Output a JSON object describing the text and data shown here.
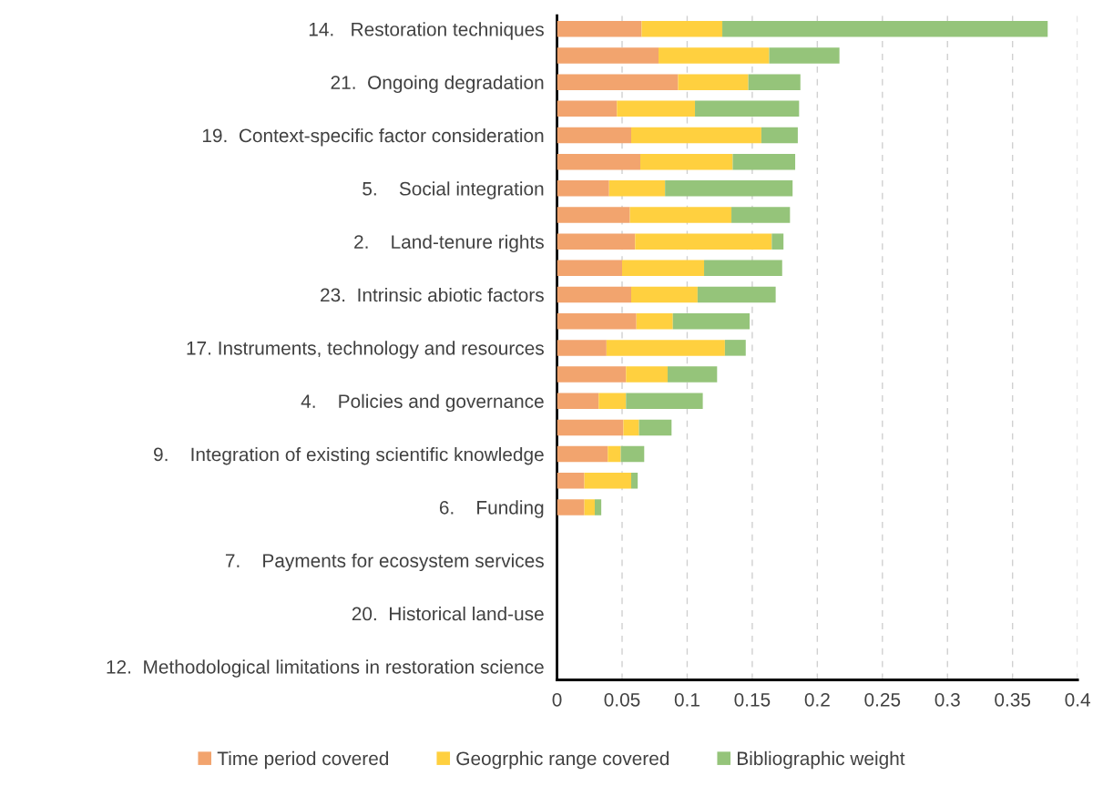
{
  "chart_data": {
    "type": "bar",
    "orientation": "horizontal",
    "stacked": true,
    "categories": [
      "14.   Restoration techniques",
      null,
      "21.  Ongoing degradation",
      null,
      "19.  Context-specific factor consideration",
      null,
      "5.    Social integration",
      null,
      "2.    Land-tenure rights",
      null,
      "23.  Intrinsic abiotic factors",
      null,
      "17. Instruments, technology and resources",
      null,
      "4.    Policies and governance",
      null,
      "9.    Integration of existing scientific knowledge",
      null,
      "6.    Funding",
      null,
      "7.    Payments for ecosystem services",
      null,
      "20.  Historical land-use",
      null,
      "12.  Methodological limitations in restoration science"
    ],
    "series": [
      {
        "name": "Time period covered",
        "color": "#f2a46e",
        "values": [
          0.065,
          0.078,
          0.093,
          0.046,
          0.057,
          0.064,
          0.04,
          0.056,
          0.06,
          0.05,
          0.057,
          0.061,
          0.038,
          0.053,
          0.032,
          0.051,
          0.039,
          0.021,
          0.021,
          0,
          0,
          0,
          0,
          0,
          0
        ]
      },
      {
        "name": "Geogrphic range covered",
        "color": "#ffd03f",
        "values": [
          0.062,
          0.085,
          0.054,
          0.06,
          0.1,
          0.071,
          0.043,
          0.078,
          0.105,
          0.063,
          0.051,
          0.028,
          0.091,
          0.032,
          0.021,
          0.012,
          0.01,
          0.036,
          0.008,
          0,
          0,
          0,
          0,
          0,
          0
        ]
      },
      {
        "name": "Bibliographic weight",
        "color": "#95c47a",
        "values": [
          0.25,
          0.054,
          0.04,
          0.08,
          0.028,
          0.048,
          0.098,
          0.045,
          0.009,
          0.06,
          0.06,
          0.059,
          0.016,
          0.038,
          0.059,
          0.025,
          0.018,
          0.005,
          0.005,
          0,
          0,
          0,
          0,
          0,
          0
        ]
      }
    ],
    "xlim": [
      0,
      0.4
    ],
    "xticks": [
      0,
      0.05,
      0.1,
      0.15,
      0.2,
      0.25,
      0.3,
      0.35,
      0.4
    ],
    "grid": "x",
    "legend": "bottom"
  }
}
